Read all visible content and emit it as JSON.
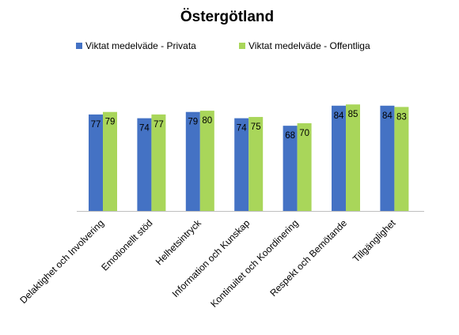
{
  "chart_data": {
    "type": "bar",
    "title": "Östergötland",
    "categories": [
      "Delaktighet och Involvering",
      "Emotionellt stöd",
      "Helhetsintryck",
      "Information och Kunskap",
      "Kontinuitet och Koordinering",
      "Respekt och Bemötande",
      "Tillgänglighet"
    ],
    "series": [
      {
        "name": "Viktat medelväde - Privata",
        "values": [
          77,
          74,
          79,
          74,
          68,
          84,
          84
        ],
        "color": "#4472C4"
      },
      {
        "name": "Viktat medelväde - Offentliga",
        "values": [
          79,
          77,
          80,
          75,
          70,
          85,
          83
        ],
        "color": "#A9D65A"
      }
    ],
    "xlabel": "",
    "ylabel": "",
    "ylim": [
      0,
      100
    ],
    "legend_position": "top",
    "grid": false,
    "data_labels": true
  }
}
